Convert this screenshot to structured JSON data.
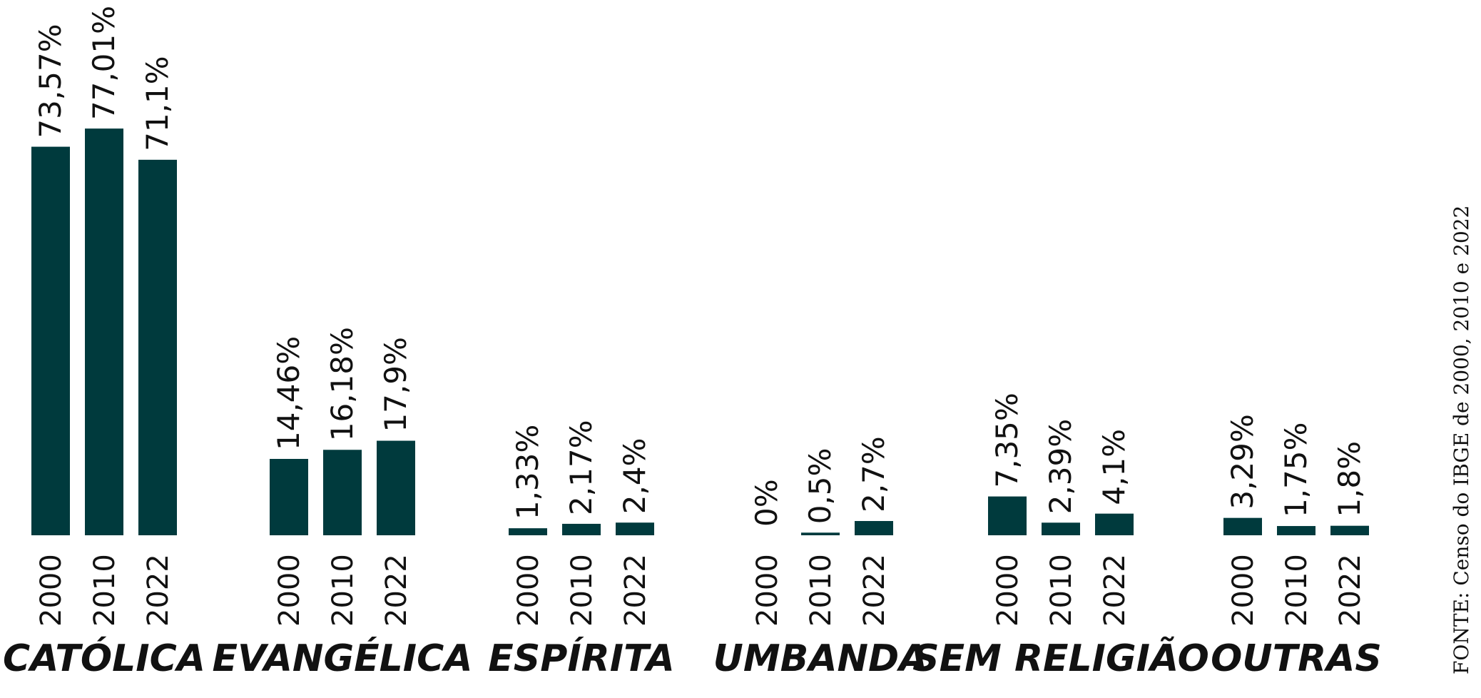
{
  "colors": {
    "bar": "#003a3d",
    "text": "#111111",
    "background": "#ffffff"
  },
  "chart_data": {
    "type": "bar",
    "title": "",
    "xlabel": "",
    "ylabel": "",
    "unit": "%",
    "ylim": [
      0,
      80
    ],
    "grid": false,
    "legend": "none",
    "years": [
      "2000",
      "2010",
      "2022"
    ],
    "groups": [
      {
        "category": "CATÓLICA",
        "values": [
          73.57,
          77.01,
          71.1
        ],
        "labels": [
          "73,57%",
          "77,01%",
          "71,1%"
        ]
      },
      {
        "category": "EVANGÉLICA",
        "values": [
          14.46,
          16.18,
          17.9
        ],
        "labels": [
          "14,46%",
          "16,18%",
          "17,9%"
        ]
      },
      {
        "category": "ESPÍRITA",
        "values": [
          1.33,
          2.17,
          2.4
        ],
        "labels": [
          "1,33%",
          "2,17%",
          "2,4%"
        ]
      },
      {
        "category": "UMBANDA",
        "values": [
          0,
          0.5,
          2.7
        ],
        "labels": [
          "0%",
          "0,5%",
          "2,7%"
        ]
      },
      {
        "category": "SEM RELIGIÃO",
        "values": [
          7.35,
          2.39,
          4.1
        ],
        "labels": [
          "7,35%",
          "2,39%",
          "4,1%"
        ]
      },
      {
        "category": "OUTRAS",
        "values": [
          3.29,
          1.75,
          1.8
        ],
        "labels": [
          "3,29%",
          "1,75%",
          "1,8%"
        ]
      }
    ],
    "source": "FONTE: Censo do IBGE de 2000, 2010 e 2022"
  }
}
